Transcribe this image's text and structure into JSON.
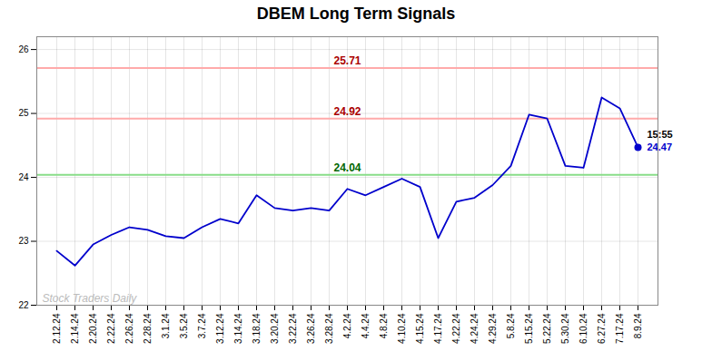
{
  "chart_data": {
    "type": "line",
    "title": "DBEM Long Term Signals",
    "categories": [
      "2.12.24",
      "2.14.24",
      "2.20.24",
      "2.22.24",
      "2.26.24",
      "2.28.24",
      "3.1.24",
      "3.5.24",
      "3.7.24",
      "3.12.24",
      "3.14.24",
      "3.18.24",
      "3.20.24",
      "3.22.24",
      "3.26.24",
      "3.28.24",
      "4.2.24",
      "4.4.24",
      "4.8.24",
      "4.10.24",
      "4.15.24",
      "4.17.24",
      "4.22.24",
      "4.24.24",
      "4.29.24",
      "5.8.24",
      "5.15.24",
      "5.22.24",
      "5.30.24",
      "6.10.24",
      "6.27.24",
      "7.17.24",
      "8.9.24"
    ],
    "values": [
      22.85,
      22.62,
      22.95,
      23.1,
      23.22,
      23.18,
      23.08,
      23.05,
      23.22,
      23.35,
      23.28,
      23.72,
      23.52,
      23.48,
      23.52,
      23.48,
      23.82,
      23.72,
      23.85,
      23.98,
      23.85,
      23.05,
      23.62,
      23.68,
      23.88,
      24.18,
      24.98,
      24.92,
      24.18,
      24.15,
      25.25,
      25.08,
      24.47
    ],
    "color": "#0000cc",
    "ylim": [
      22.0,
      26.2
    ],
    "yticks": [
      22,
      23,
      24,
      25,
      26
    ],
    "grid": true,
    "hlines": [
      {
        "value": 25.71,
        "label": "25.71",
        "color": "#ffaaaa",
        "label_color": "#aa0000"
      },
      {
        "value": 24.92,
        "label": "24.92",
        "color": "#ffaaaa",
        "label_color": "#aa0000"
      },
      {
        "value": 24.04,
        "label": "24.04",
        "color": "#88dd88",
        "label_color": "#006600"
      }
    ],
    "last_point_annotations": [
      {
        "text": "15:55",
        "color": "#000000"
      },
      {
        "text": "24.47",
        "color": "#0000cc"
      }
    ],
    "watermark": {
      "text": "Stock Traders Daily",
      "color": "#bbbbbb"
    }
  }
}
